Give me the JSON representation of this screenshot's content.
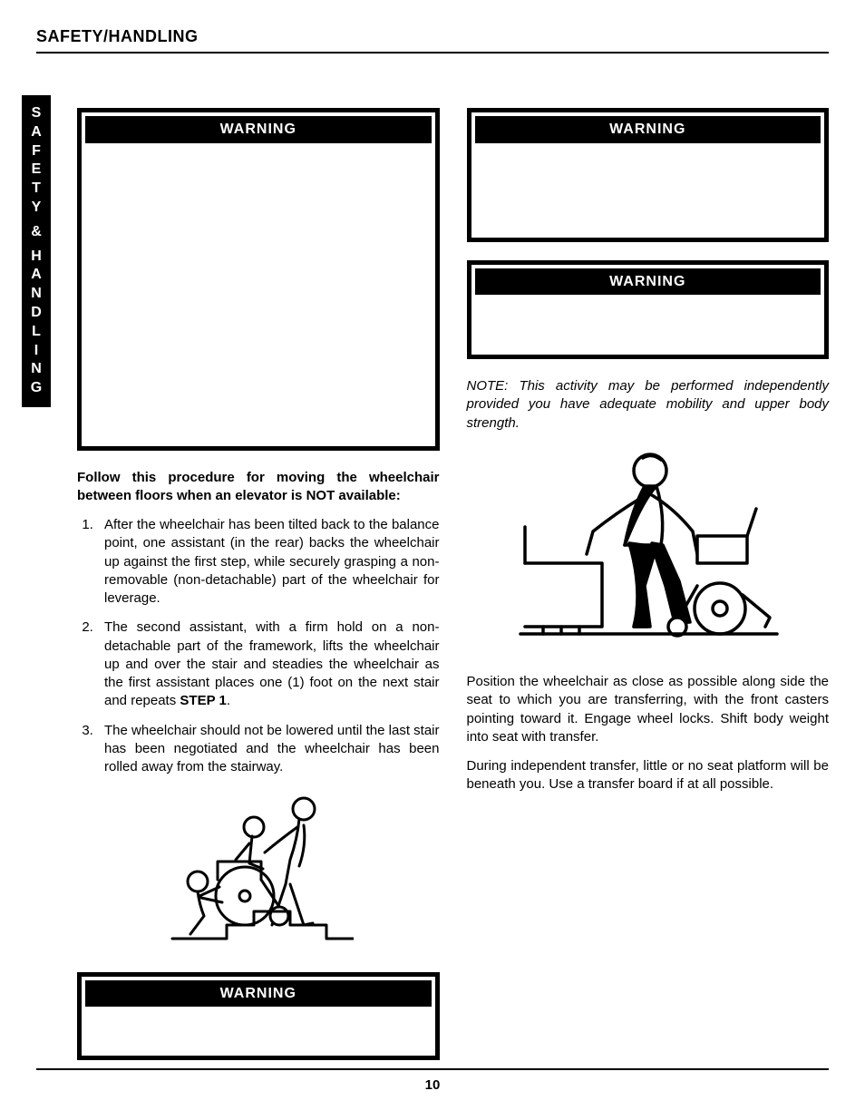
{
  "header": "SAFETY/HANDLING",
  "sideTab": [
    "S",
    "A",
    "F",
    "E",
    "T",
    "Y",
    "",
    "&",
    "",
    "H",
    "A",
    "N",
    "D",
    "L",
    "I",
    "N",
    "G"
  ],
  "pageNum": "10",
  "left": {
    "warn1": {
      "title": "WARNING",
      "body": ""
    },
    "lead": "Follow this procedure for moving the wheelchair between floors when an elevator is NOT available:",
    "steps": [
      "After the wheelchair has been tilted back to the balance point, one assistant (in the rear) backs the wheelchair up against the first step, while securely grasping a non-removable (non-detachable) part of the wheelchair for leverage.",
      "The second assistant, with a firm hold on a non-detachable part of the framework, lifts the wheelchair up and over the stair and steadies the wheelchair as the first assistant places one (1) foot on the next stair and repeats <b>STEP 1</b>.",
      "The wheelchair should not be lowered until the last stair has been negotiated and the wheelchair has been rolled away from the stairway."
    ],
    "warn2": {
      "title": "WARNING",
      "body": ""
    }
  },
  "right": {
    "warn1": {
      "title": "WARNING",
      "body": ""
    },
    "warn2": {
      "title": "WARNING",
      "body": ""
    },
    "note": "NOTE: This activity may be performed independently provided you have adequate mobility and upper body strength.",
    "p1": "Position the wheelchair as close as possible along side the seat to which you are transferring, with the front casters pointing toward it. Engage wheel locks. Shift body weight into seat with transfer.",
    "p2": "During independent transfer, little or no seat platform will be beneath you. Use a transfer board if at all possible."
  }
}
